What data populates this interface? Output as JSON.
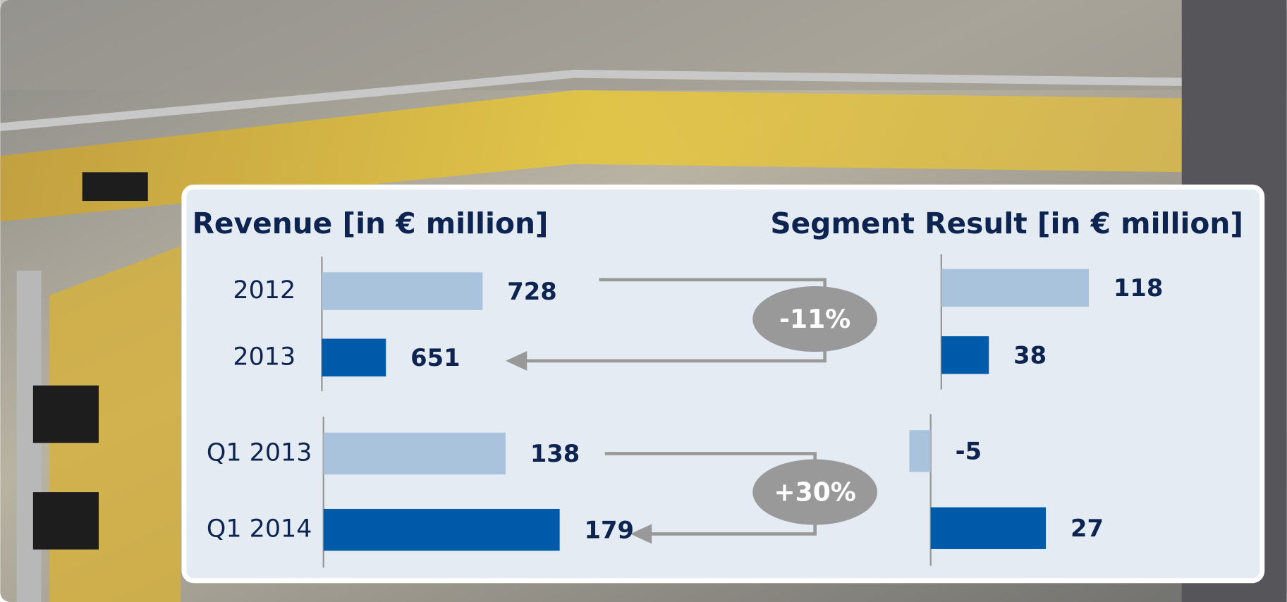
{
  "chart_data": [
    {
      "type": "bar",
      "orientation": "horizontal",
      "title": "Revenue [in € million]",
      "categories": [
        "2012",
        "2013"
      ],
      "values": [
        728,
        651
      ],
      "colors": [
        "#a9c3dc",
        "#005aaa"
      ],
      "xlim": [
        600,
        860
      ]
    },
    {
      "type": "bar",
      "orientation": "horizontal",
      "categories": [
        "Q1 2013",
        "Q1 2014"
      ],
      "values": [
        138,
        179
      ],
      "colors": [
        "#a9c3dc",
        "#005aaa"
      ],
      "xlim": [
        0,
        250
      ]
    },
    {
      "type": "bar",
      "orientation": "horizontal",
      "title": "Segment Result [in € million]",
      "values": [
        118,
        38
      ],
      "colors": [
        "#a9c3dc",
        "#005aaa"
      ],
      "xlim": [
        0,
        170
      ]
    },
    {
      "type": "bar",
      "orientation": "horizontal",
      "values": [
        -5,
        27
      ],
      "colors": [
        "#a9c3dc",
        "#005aaa"
      ],
      "xlim": [
        -5,
        45
      ]
    }
  ],
  "annotations": [
    "-11%",
    "+30%"
  ]
}
